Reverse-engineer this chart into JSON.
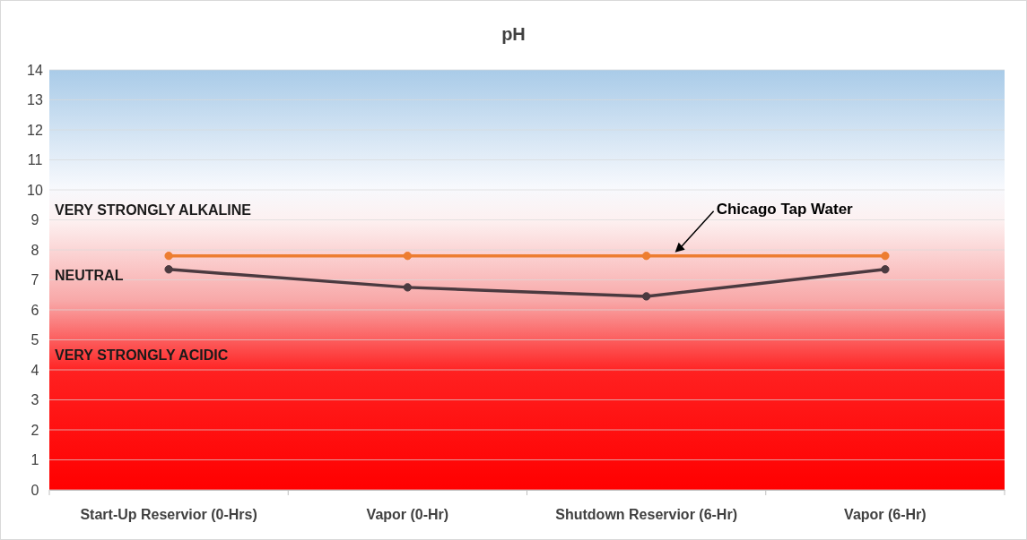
{
  "chart_data": {
    "type": "line",
    "title": "pH",
    "categories": [
      "Start-Up Reservior (0-Hrs)",
      "Vapor (0-Hr)",
      "Shutdown Reservior (6-Hr)",
      "Vapor (6-Hr)"
    ],
    "series": [
      {
        "name": "Chicago Tap Water",
        "color": "#ed7d31",
        "values": [
          7.8,
          7.8,
          7.8,
          7.8
        ]
      },
      {
        "color": "#4b3a40",
        "values": [
          7.35,
          6.75,
          6.45,
          7.35
        ]
      }
    ],
    "ylim": [
      0,
      14
    ],
    "yticks": [
      0,
      1,
      2,
      3,
      4,
      5,
      6,
      7,
      8,
      9,
      10,
      11,
      12,
      13,
      14
    ],
    "grid": "y",
    "marker": "circle",
    "line_style": "solid",
    "annotations": [
      "VERY STRONGLY ALKALINE",
      "NEUTRAL",
      "VERY STRONGLY ACIDIC"
    ]
  }
}
